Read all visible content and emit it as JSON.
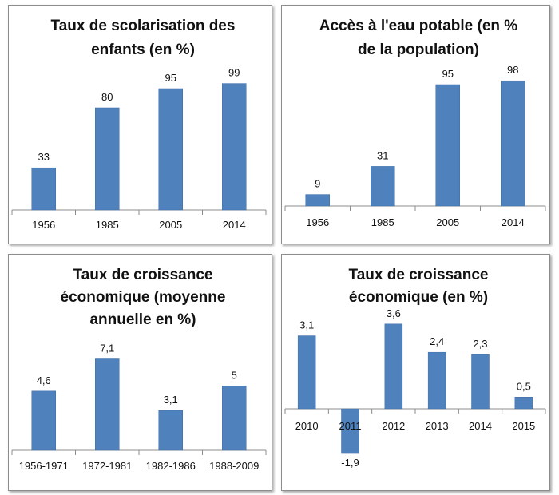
{
  "colors": {
    "bar": "#4f81bd",
    "bar_edge": "#3d6da8",
    "axis": "#8c8c8c",
    "text": "#111111"
  },
  "chart_data": [
    {
      "type": "bar",
      "title_lines": [
        "Taux de scolarisation des",
        "enfants (en %)"
      ],
      "categories": [
        "1956",
        "1985",
        "2005",
        "2014"
      ],
      "values": [
        33,
        80,
        95,
        99
      ],
      "value_labels": [
        "33",
        "80",
        "95",
        "99"
      ],
      "ylim": [
        0,
        100
      ],
      "grid": false
    },
    {
      "type": "bar",
      "title_lines": [
        "Accès à l'eau potable (en %",
        "de la population)"
      ],
      "categories": [
        "1956",
        "1985",
        "2005",
        "2014"
      ],
      "values": [
        9,
        31,
        95,
        98
      ],
      "value_labels": [
        "9",
        "31",
        "95",
        "98"
      ],
      "ylim": [
        0,
        100
      ],
      "grid": false
    },
    {
      "type": "bar",
      "title_lines": [
        "Taux de croissance",
        "économique (moyenne",
        "annuelle en %)"
      ],
      "categories": [
        "1956-1971",
        "1972-1981",
        "1982-1986",
        "1988-2009"
      ],
      "values": [
        4.6,
        7.1,
        3.1,
        5
      ],
      "value_labels": [
        "4,6",
        "7,1",
        "3,1",
        "5"
      ],
      "ylim": [
        0,
        8
      ],
      "grid": false
    },
    {
      "type": "bar",
      "title_lines": [
        "Taux de croissance",
        "économique (en %)"
      ],
      "categories": [
        "2010",
        "2011",
        "2012",
        "2013",
        "2014",
        "2015"
      ],
      "values": [
        3.1,
        -1.9,
        3.6,
        2.4,
        2.3,
        0.5
      ],
      "value_labels": [
        "3,1",
        "-1,9",
        "3,6",
        "2,4",
        "2,3",
        "0,5"
      ],
      "ylim": [
        -2,
        4
      ],
      "grid": false
    }
  ]
}
